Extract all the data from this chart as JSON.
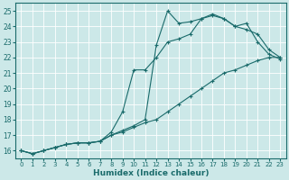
{
  "xlabel": "Humidex (Indice chaleur)",
  "bg_color": "#cce8e8",
  "grid_color": "#ffffff",
  "line_color": "#1a6b6b",
  "xlim": [
    -0.5,
    23.5
  ],
  "ylim": [
    15.5,
    25.5
  ],
  "yticks": [
    16,
    17,
    18,
    19,
    20,
    21,
    22,
    23,
    24,
    25
  ],
  "xticks": [
    0,
    1,
    2,
    3,
    4,
    5,
    6,
    7,
    8,
    9,
    10,
    11,
    12,
    13,
    14,
    15,
    16,
    17,
    18,
    19,
    20,
    21,
    22,
    23
  ],
  "line1_x": [
    0,
    1,
    2,
    3,
    4,
    5,
    6,
    7,
    8,
    9,
    10,
    11,
    12,
    13,
    14,
    15,
    16,
    17,
    18,
    19,
    20,
    21,
    22,
    23
  ],
  "line1_y": [
    16.0,
    15.8,
    16.0,
    16.2,
    16.4,
    16.5,
    16.5,
    16.6,
    17.0,
    17.3,
    17.6,
    18.0,
    22.8,
    25.0,
    24.2,
    24.3,
    24.5,
    24.7,
    24.5,
    24.0,
    24.2,
    23.0,
    22.2,
    21.9
  ],
  "line1_markers": [
    0,
    1,
    2,
    3,
    4,
    5,
    6,
    7,
    8,
    9,
    10,
    11,
    12,
    13,
    14,
    15,
    16,
    17,
    18,
    20,
    21,
    22,
    23
  ],
  "line2_x": [
    0,
    1,
    2,
    3,
    4,
    5,
    6,
    7,
    8,
    9,
    10,
    11,
    12,
    13,
    14,
    15,
    16,
    17,
    18,
    19,
    20,
    21,
    22,
    23
  ],
  "line2_y": [
    16.0,
    15.8,
    16.0,
    16.2,
    16.4,
    16.5,
    16.5,
    16.6,
    17.2,
    18.5,
    21.2,
    21.2,
    22.0,
    23.0,
    23.2,
    23.5,
    24.5,
    24.8,
    24.5,
    24.0,
    23.8,
    23.5,
    22.5,
    22.0
  ],
  "line2_markers": [
    0,
    1,
    2,
    3,
    4,
    5,
    6,
    7,
    9,
    10,
    11,
    12,
    13,
    14,
    15,
    16,
    17,
    18,
    19,
    20,
    21,
    22,
    23
  ],
  "line3_x": [
    0,
    1,
    2,
    3,
    4,
    5,
    6,
    7,
    8,
    9,
    10,
    11,
    12,
    13,
    14,
    15,
    16,
    17,
    18,
    19,
    20,
    21,
    22,
    23
  ],
  "line3_y": [
    16.0,
    15.8,
    16.0,
    16.2,
    16.4,
    16.5,
    16.5,
    16.6,
    17.0,
    17.2,
    17.5,
    17.8,
    18.0,
    18.5,
    19.0,
    19.5,
    20.0,
    20.5,
    21.0,
    21.2,
    21.5,
    21.8,
    22.0,
    22.0
  ],
  "line3_markers": [
    0,
    1,
    2,
    3,
    4,
    5,
    6,
    7,
    8,
    9,
    10,
    11,
    12,
    13,
    14,
    15,
    16,
    17,
    18,
    19,
    20,
    21,
    22,
    23
  ]
}
